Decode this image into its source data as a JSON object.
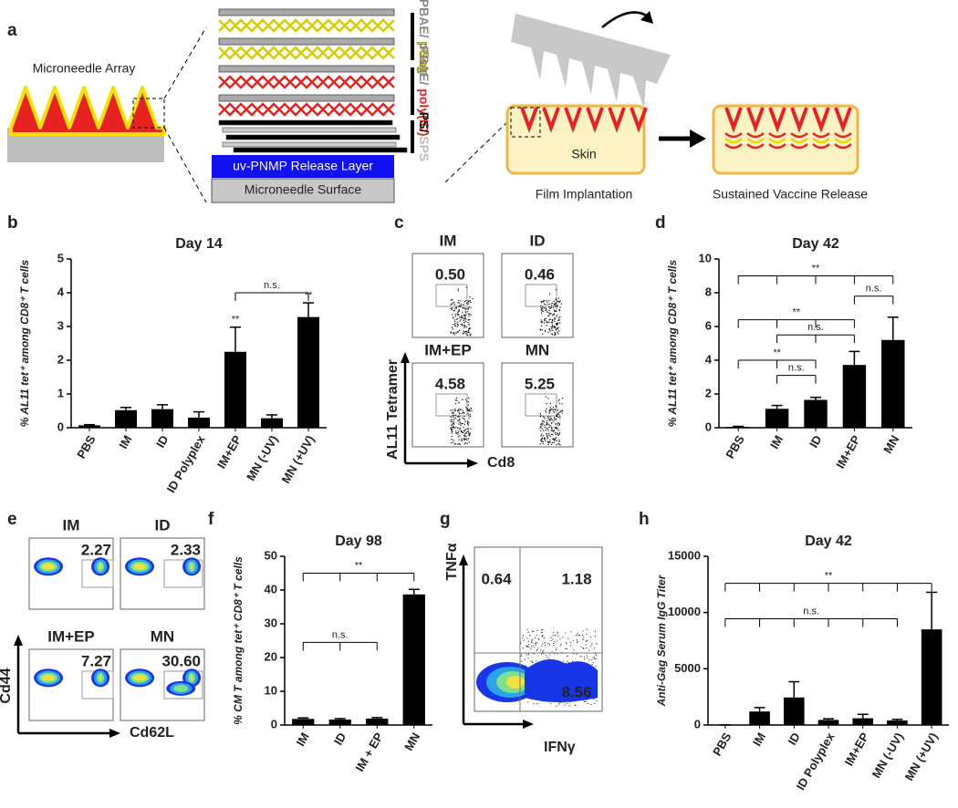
{
  "panel_labels": [
    "a",
    "b",
    "c",
    "d",
    "e",
    "f",
    "g",
    "h"
  ],
  "schematic": {
    "array_label": "Microneedle Array",
    "layers": [
      {
        "outer": "PBAE/",
        "inner": "pGag"
      },
      {
        "outer": "PBAE/",
        "inner": "poly(IC)"
      },
      {
        "outer": "PS/",
        "inner": "SPS"
      }
    ],
    "release_layer": "uv-PNMP Release Layer",
    "surface": "Microneedle Surface",
    "skin": "Skin",
    "steps": [
      "Film Implantation",
      "Sustained Vaccine Release"
    ]
  },
  "flow_c": {
    "y_label": "AL11 Tetramer",
    "x_label": "Cd8",
    "plots": [
      {
        "name": "IM",
        "value": "0.50"
      },
      {
        "name": "ID",
        "value": "0.46"
      },
      {
        "name": "IM+EP",
        "value": "4.58"
      },
      {
        "name": "MN",
        "value": "5.25"
      }
    ]
  },
  "flow_e": {
    "y_label": "Cd44",
    "x_label": "Cd62L",
    "plots": [
      {
        "name": "IM",
        "value": "2.27"
      },
      {
        "name": "ID",
        "value": "2.33"
      },
      {
        "name": "IM+EP",
        "value": "7.27"
      },
      {
        "name": "MN",
        "value": "30.60"
      }
    ]
  },
  "flow_g": {
    "y_label": "TNFα",
    "x_label": "IFNγ",
    "quadrants": [
      "0.64",
      "1.18",
      "8.56"
    ]
  },
  "chart_data": [
    {
      "type": "bar",
      "title": "Day 14",
      "y_label": "% AL11 tet⁺ among CD8⁺ T cells",
      "color": "#000000",
      "categories": [
        "PBS",
        "IM",
        "ID",
        "ID Polyplex",
        "IM+EP",
        "MN (-UV)",
        "MN (+UV)"
      ],
      "values": [
        0.07,
        0.52,
        0.55,
        0.3,
        2.25,
        0.28,
        3.28
      ],
      "errors": [
        0.02,
        0.08,
        0.13,
        0.17,
        0.73,
        0.1,
        0.42
      ],
      "ylim": [
        0,
        5
      ],
      "yticks": [
        0,
        1,
        2,
        3,
        4,
        5
      ],
      "annotations": [
        {
          "text": "**",
          "categories": [
            "IM+EP"
          ]
        },
        {
          "text": "**",
          "categories": [
            "MN (+UV)"
          ]
        },
        {
          "text": "n.s.",
          "categories": [
            "IM+EP",
            "MN (+UV)"
          ]
        }
      ]
    },
    {
      "type": "bar",
      "title": "Day 42",
      "y_label": "% AL11 tet⁺ among CD8⁺ T cells",
      "color": "#000000",
      "categories": [
        "PBS",
        "IM",
        "ID",
        "IM+EP",
        "MN"
      ],
      "values": [
        0.05,
        1.12,
        1.65,
        3.72,
        5.2
      ],
      "errors": [
        0.03,
        0.2,
        0.15,
        0.8,
        1.35
      ],
      "ylim": [
        0,
        10
      ],
      "yticks": [
        0,
        2,
        4,
        6,
        8,
        10
      ],
      "annotations": [
        {
          "text": "**",
          "categories": [
            "PBS",
            "IM",
            "ID",
            "IM+EP",
            "MN"
          ]
        },
        {
          "text": "n.s.",
          "categories": [
            "IM+EP",
            "MN"
          ]
        },
        {
          "text": "**",
          "categories": [
            "PBS",
            "IM",
            "ID",
            "IM+EP"
          ]
        },
        {
          "text": "n.s.",
          "categories": [
            "IM",
            "ID",
            "IM+EP"
          ]
        },
        {
          "text": "**",
          "categories": [
            "PBS",
            "IM",
            "ID"
          ]
        },
        {
          "text": "n.s.",
          "categories": [
            "IM",
            "ID"
          ]
        }
      ]
    },
    {
      "type": "bar",
      "title": "Day 98",
      "y_label": "% CM T among tet⁺ CD8⁺ T cells",
      "color": "#000000",
      "categories": [
        "IM",
        "ID",
        "IM + EP",
        "MN"
      ],
      "values": [
        1.8,
        1.6,
        1.9,
        38.7
      ],
      "errors": [
        0.3,
        0.3,
        0.3,
        1.5
      ],
      "ylim": [
        0,
        50
      ],
      "yticks": [
        0,
        10,
        20,
        30,
        40,
        50
      ],
      "annotations": [
        {
          "text": "**",
          "categories": [
            "IM",
            "ID",
            "IM + EP",
            "MN"
          ]
        },
        {
          "text": "n.s.",
          "categories": [
            "IM",
            "ID",
            "IM + EP"
          ]
        }
      ]
    },
    {
      "type": "bar",
      "title": "Day 42",
      "y_label": "Anti-Gag Serum IgG Titer",
      "color": "#000000",
      "categories": [
        "PBS",
        "IM",
        "ID",
        "ID Polyplex",
        "IM+EP",
        "MN (-UV)",
        "MN (+UV)"
      ],
      "values": [
        0,
        1200,
        2450,
        450,
        600,
        400,
        8500
      ],
      "errors": [
        0,
        350,
        1400,
        100,
        350,
        100,
        3300
      ],
      "ylim": [
        0,
        15000
      ],
      "yticks": [
        0,
        5000,
        10000,
        15000
      ],
      "annotations": [
        {
          "text": "**",
          "categories": [
            "PBS",
            "IM",
            "ID",
            "ID Polyplex",
            "IM+EP",
            "MN (-UV)",
            "MN (+UV)"
          ]
        },
        {
          "text": "n.s.",
          "categories": [
            "PBS",
            "IM",
            "ID",
            "ID Polyplex",
            "IM+EP",
            "MN (-UV)"
          ]
        }
      ]
    }
  ]
}
